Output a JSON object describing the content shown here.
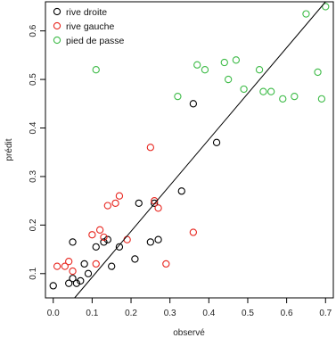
{
  "chart_data": {
    "type": "scatter",
    "xlabel": "observé",
    "ylabel": "prédit",
    "xlim": [
      -0.02,
      0.72
    ],
    "ylim": [
      0.05,
      0.66
    ],
    "x_ticks": [
      "0.0",
      "0.1",
      "0.2",
      "0.3",
      "0.4",
      "0.5",
      "0.6",
      "0.7"
    ],
    "y_ticks": [
      "0.1",
      "0.2",
      "0.3",
      "0.4",
      "0.5",
      "0.6"
    ],
    "legend_position": "top-left",
    "reference_line": {
      "type": "fitted-line",
      "points": [
        [
          0.055,
          0.05
        ],
        [
          0.7,
          0.66
        ]
      ]
    },
    "series": [
      {
        "name": "rive droite",
        "color": "#000000",
        "x": [
          0.0,
          0.04,
          0.05,
          0.06,
          0.07,
          0.05,
          0.08,
          0.09,
          0.11,
          0.13,
          0.14,
          0.15,
          0.17,
          0.21,
          0.22,
          0.25,
          0.26,
          0.27,
          0.33,
          0.36,
          0.42
        ],
        "y": [
          0.075,
          0.08,
          0.09,
          0.08,
          0.085,
          0.165,
          0.12,
          0.1,
          0.155,
          0.165,
          0.17,
          0.115,
          0.155,
          0.13,
          0.245,
          0.165,
          0.245,
          0.17,
          0.27,
          0.45,
          0.37
        ]
      },
      {
        "name": "rive gauche",
        "color": "#e8261f",
        "x": [
          0.01,
          0.03,
          0.04,
          0.05,
          0.1,
          0.11,
          0.12,
          0.13,
          0.14,
          0.16,
          0.17,
          0.19,
          0.25,
          0.26,
          0.27,
          0.29,
          0.36
        ],
        "y": [
          0.115,
          0.115,
          0.125,
          0.105,
          0.18,
          0.12,
          0.19,
          0.175,
          0.24,
          0.245,
          0.26,
          0.17,
          0.36,
          0.25,
          0.235,
          0.12,
          0.185
        ]
      },
      {
        "name": "pied de passe",
        "color": "#3dbb47",
        "x": [
          0.11,
          0.32,
          0.37,
          0.39,
          0.44,
          0.45,
          0.47,
          0.49,
          0.53,
          0.54,
          0.56,
          0.59,
          0.62,
          0.65,
          0.68,
          0.69,
          0.7
        ],
        "y": [
          0.52,
          0.465,
          0.53,
          0.52,
          0.535,
          0.5,
          0.54,
          0.48,
          0.52,
          0.475,
          0.475,
          0.46,
          0.465,
          0.635,
          0.515,
          0.46,
          0.65
        ]
      }
    ]
  }
}
